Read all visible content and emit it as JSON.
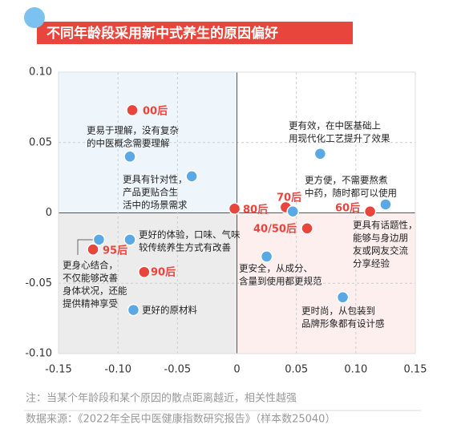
{
  "chart_data": {
    "type": "scatter",
    "title": "不同年龄段采用新中式养生的原因偏好",
    "xlim": [
      -0.15,
      0.15
    ],
    "ylim": [
      -0.1,
      0.1
    ],
    "xticks": [
      -0.15,
      {
        "value": -0.1,
        "label": "-0.10"
      },
      -0.05,
      0,
      0.05,
      {
        "value": 0.1,
        "label": "0.10"
      },
      0.15
    ],
    "yticks": [
      {
        "value": 0.1,
        "label": "0.10"
      },
      0.05,
      0,
      -0.05,
      {
        "value": -0.1,
        "label": "-0.10"
      }
    ],
    "grid": true,
    "series": [
      {
        "color": "#e8453c",
        "labels": [
          "00后",
          "80后",
          "70后",
          "60后",
          "40/50后",
          "95后",
          "90后"
        ],
        "x": [
          -0.088,
          -0.002,
          0.041,
          0.112,
          0.059,
          -0.121,
          -0.078
        ],
        "y": [
          0.073,
          0.003,
          0.004,
          0.001,
          -0.011,
          -0.026,
          -0.042
        ]
      },
      {
        "color": "#5aa9e6",
        "labels": [
          [
            "更易于理解，没有复杂",
            "的中医概念需要理解"
          ],
          [
            "更具有针对性，",
            "产品更贴合生",
            "活中的场景需求"
          ],
          [
            "更有效，在中医基础上",
            "用现代化工艺提升了效果"
          ],
          [
            "更方便，不需要熬煮",
            "中药，随时都可以使用"
          ],
          [
            "更具有话题性，",
            "能够与身边朋",
            "友或网友交流",
            "分享经验"
          ],
          [
            "更好的体验，口味、气味",
            "较传统养生方式有改善"
          ],
          [
            "更身心结合，",
            "不仅能够改善",
            "身体状况，还能",
            "提供精神享受"
          ],
          [
            "更安全，从成分、",
            "含量到使用都更规范"
          ],
          [
            "更时尚，从包装到",
            "品牌形象都有设计感"
          ],
          [
            "更好的原材料"
          ]
        ],
        "x": [
          -0.09,
          -0.038,
          0.07,
          0.047,
          0.125,
          -0.09,
          -0.116,
          0.025,
          0.089,
          -0.087
        ],
        "y": [
          0.04,
          0.026,
          0.042,
          0.001,
          0.006,
          -0.019,
          -0.019,
          -0.031,
          -0.06,
          -0.069
        ]
      }
    ],
    "notes": [
      "注：当某个年龄段和某个原因的散点距离越近，相关性越强",
      "数据来源：《2022年全民中医健康指数研究报告》（样本数25040）"
    ]
  }
}
